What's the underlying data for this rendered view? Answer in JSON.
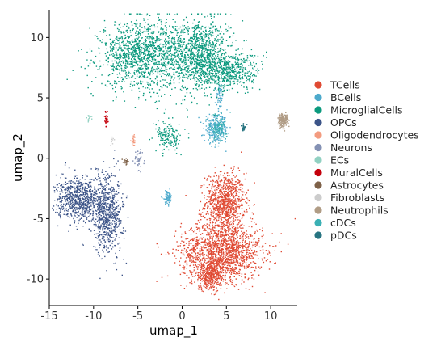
{
  "chart_data": {
    "type": "scatter",
    "title": "",
    "xlabel": "umap_1",
    "ylabel": "umap_2",
    "xlim": [
      -15,
      13
    ],
    "ylim": [
      -12.2,
      12.3
    ],
    "xticks": [
      -15,
      -10,
      -5,
      0,
      5,
      10
    ],
    "yticks": [
      -10,
      -5,
      0,
      5,
      10
    ],
    "xtick_labels": [
      "-15",
      "-10",
      "-5",
      "0",
      "5",
      "10"
    ],
    "ytick_labels": [
      "-10",
      "-5",
      "0",
      "5",
      "10"
    ],
    "grid": false,
    "legend_position": "right",
    "series": [
      {
        "name": "TCells",
        "color": "#e04a33",
        "clusters": [
          {
            "cx": 4.8,
            "cy": -3.6,
            "sx": 2.0,
            "sy": 2.2,
            "n": 900
          },
          {
            "cx": 4.5,
            "cy": -7.6,
            "sx": 4.2,
            "sy": 2.2,
            "n": 1500
          },
          {
            "cx": 3.2,
            "cy": -9.6,
            "sx": 1.8,
            "sy": 1.2,
            "n": 400
          }
        ]
      },
      {
        "name": "BCells",
        "color": "#4daacc",
        "clusters": [
          {
            "cx": 3.8,
            "cy": 2.5,
            "sx": 1.2,
            "sy": 1.0,
            "n": 260
          },
          {
            "cx": 4.2,
            "cy": 5.2,
            "sx": 0.35,
            "sy": 0.9,
            "n": 60
          },
          {
            "cx": -1.7,
            "cy": -3.2,
            "sx": 0.5,
            "sy": 0.5,
            "n": 70
          }
        ]
      },
      {
        "name": "MicroglialCells",
        "color": "#0b9a7e",
        "clusters": [
          {
            "cx": -4.5,
            "cy": 8.6,
            "sx": 4.3,
            "sy": 2.5,
            "n": 1300
          },
          {
            "cx": 1.8,
            "cy": 8.7,
            "sx": 3.3,
            "sy": 2.7,
            "n": 1100
          },
          {
            "cx": 5.2,
            "cy": 7.2,
            "sx": 3.3,
            "sy": 1.4,
            "n": 500
          },
          {
            "cx": -1.6,
            "cy": 1.8,
            "sx": 1.3,
            "sy": 1.1,
            "n": 150
          }
        ]
      },
      {
        "name": "OPCs",
        "color": "#3c5488",
        "clusters": [
          {
            "cx": -11.8,
            "cy": -3.3,
            "sx": 2.2,
            "sy": 1.6,
            "n": 700
          },
          {
            "cx": -8.5,
            "cy": -4.5,
            "sx": 1.6,
            "sy": 3.0,
            "n": 700
          }
        ]
      },
      {
        "name": "Oligodendrocytes",
        "color": "#f39b7f",
        "clusters": [
          {
            "cx": -5.5,
            "cy": 1.5,
            "sx": 0.3,
            "sy": 0.4,
            "n": 25
          }
        ]
      },
      {
        "name": "Neurons",
        "color": "#8491b4",
        "clusters": [
          {
            "cx": -5.0,
            "cy": -0.2,
            "sx": 0.4,
            "sy": 1.0,
            "n": 40
          }
        ]
      },
      {
        "name": "ECs",
        "color": "#91d1c2",
        "clusters": [
          {
            "cx": -10.6,
            "cy": 3.3,
            "sx": 0.35,
            "sy": 0.3,
            "n": 15
          }
        ]
      },
      {
        "name": "MuralCells",
        "color": "#c4000c",
        "clusters": [
          {
            "cx": -8.6,
            "cy": 3.3,
            "sx": 0.18,
            "sy": 0.6,
            "n": 35
          }
        ]
      },
      {
        "name": "Astrocytes",
        "color": "#7e6148",
        "clusters": [
          {
            "cx": -6.4,
            "cy": -0.2,
            "sx": 0.3,
            "sy": 0.25,
            "n": 20
          }
        ]
      },
      {
        "name": "Fibroblasts",
        "color": "#cccccc",
        "clusters": [
          {
            "cx": -8.0,
            "cy": 1.5,
            "sx": 0.3,
            "sy": 0.3,
            "n": 10
          }
        ]
      },
      {
        "name": "Neutrophils",
        "color": "#b09c85",
        "clusters": [
          {
            "cx": 11.3,
            "cy": 3.2,
            "sx": 0.5,
            "sy": 0.55,
            "n": 180
          }
        ]
      },
      {
        "name": "cDCs",
        "color": "#3ab0b4",
        "clusters": [
          {
            "cx": 4.0,
            "cy": 2.5,
            "sx": 0.9,
            "sy": 1.0,
            "n": 120
          }
        ]
      },
      {
        "name": "pDCs",
        "color": "#277481",
        "clusters": [
          {
            "cx": 6.9,
            "cy": 2.6,
            "sx": 0.2,
            "sy": 0.25,
            "n": 30
          }
        ]
      }
    ]
  }
}
